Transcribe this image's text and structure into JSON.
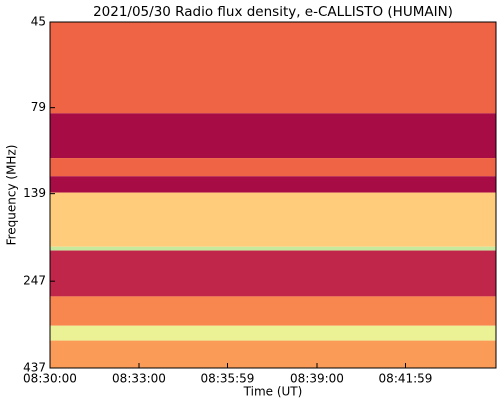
{
  "chart_data": {
    "type": "spectrogram",
    "title": "2021/05/30  Radio flux density, e-CALLISTO (HUMAIN)",
    "xlabel": "Time (UT)",
    "ylabel": "Frequency (MHz)",
    "xlim": [
      30600,
      31502
    ],
    "xticks": [
      {
        "value": 30600,
        "label": "08:30:00"
      },
      {
        "value": 30780,
        "label": "08:33:00"
      },
      {
        "value": 30959,
        "label": "08:35:59"
      },
      {
        "value": 31140,
        "label": "08:39:00"
      },
      {
        "value": 31319,
        "label": "08:41:59"
      }
    ],
    "ylim": [
      45,
      437
    ],
    "ylog": true,
    "yinverted": true,
    "yticks": [
      45,
      79,
      139,
      247,
      437
    ],
    "colormap": [
      "#9e0142",
      "#d53e4f",
      "#f46d43",
      "#fdae61",
      "#fee08b",
      "#e6f598",
      "#abdda4"
    ],
    "bands": [
      {
        "low": 45,
        "high": 82,
        "level": 0.3
      },
      {
        "low": 82,
        "high": 110,
        "level": 0.03
      },
      {
        "low": 110,
        "high": 124,
        "level": 0.3
      },
      {
        "low": 124,
        "high": 138,
        "level": 0.03
      },
      {
        "low": 138,
        "high": 197,
        "level": 0.6
      },
      {
        "low": 197,
        "high": 202,
        "level": 0.92
      },
      {
        "low": 202,
        "high": 273,
        "level": 0.1
      },
      {
        "low": 273,
        "high": 331,
        "level": 0.4
      },
      {
        "low": 331,
        "high": 365,
        "level": 0.8
      },
      {
        "low": 365,
        "high": 437,
        "level": 0.45
      }
    ]
  }
}
